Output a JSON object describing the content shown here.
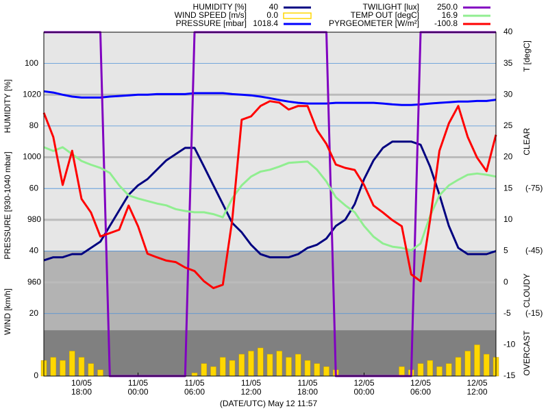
{
  "chart_data": {
    "type": "line",
    "x_label": "(DATE/UTC) May 12 11:57",
    "categories": [
      null,
      null,
      null,
      null,
      "10/05 18:00",
      null,
      null,
      null,
      null,
      null,
      "11/05 00:00",
      null,
      null,
      null,
      null,
      null,
      "11/05 06:00",
      null,
      null,
      null,
      null,
      null,
      "11/05 12:00",
      null,
      null,
      null,
      null,
      null,
      "11/05 18:00",
      null,
      null,
      null,
      null,
      null,
      "12/05 00:00",
      null,
      null,
      null,
      null,
      null,
      "12/05 06:00",
      null,
      null,
      null,
      null,
      null,
      "12/05 12:00",
      null,
      null
    ],
    "ylim": [
      0,
      110
    ],
    "yticks": [
      40,
      60,
      80,
      100
    ],
    "y_label": "HUMIDITY [%]",
    "y2lim": [
      -15,
      40
    ],
    "y2ticks": [
      -15,
      -10,
      -5,
      0,
      5,
      10,
      15,
      20,
      25,
      30,
      35,
      40
    ],
    "y2_label": "T [degC]",
    "y3lim": [
      930,
      1040
    ],
    "y3ticks": [
      960,
      980,
      1000,
      1020
    ],
    "y3_label": "PRESSURE [930-1040 mbar]",
    "y4lim": [
      0,
      110
    ],
    "y4ticks": [
      0,
      20
    ],
    "y4_label": "WIND [km/h]",
    "y5lim": [
      15,
      -150
    ],
    "y5ticks": [
      {
        "value": -75,
        "label": "(-75)"
      },
      {
        "value": -45,
        "label": "(-45)"
      },
      {
        "value": -15,
        "label": "(-15)"
      }
    ],
    "y6lim": [
      0,
      250
    ],
    "sky_bands": [
      {
        "label": "CLEAR",
        "from": -150,
        "to": -45,
        "color": "#e6e6e6"
      },
      {
        "label": "CLOUDY",
        "from": -45,
        "to": -7,
        "color": "#b3b3b3"
      },
      {
        "label": "OVERCAST",
        "from": -7,
        "to": 15,
        "color": "#808080"
      }
    ],
    "grid": true,
    "series": [
      {
        "name": "HUMIDITY [%]",
        "color": "#000080",
        "axis": "y",
        "current": 40,
        "values": [
          37,
          38,
          38,
          39,
          39,
          41,
          43,
          48,
          53,
          58,
          61,
          63,
          66,
          69,
          71,
          73,
          73,
          67,
          61,
          55,
          49,
          46,
          42,
          39,
          38,
          38,
          38,
          39,
          41,
          42,
          44,
          48,
          50,
          55,
          63,
          69,
          73,
          75,
          75,
          75,
          74,
          67,
          58,
          48,
          41,
          39,
          39,
          39,
          40
        ]
      },
      {
        "name": "WIND SPEED [m/s]",
        "color": "#ffd700",
        "axis": "y4",
        "type": "bar",
        "current": {
          "value": 0,
          "label": "0.0"
        },
        "values": [
          5,
          6,
          5,
          8,
          6,
          4,
          2,
          0,
          0,
          0,
          0,
          0,
          0,
          0,
          0,
          0,
          1,
          4,
          3,
          6,
          5,
          7,
          8,
          9,
          7,
          8,
          6,
          7,
          5,
          4,
          3,
          2,
          0,
          0,
          0,
          0,
          0,
          0,
          3,
          2,
          4,
          5,
          3,
          4,
          6,
          8,
          10,
          7,
          6
        ]
      },
      {
        "name": "PRESSURE [mbar]",
        "color": "#0000ff",
        "axis": "y3",
        "current": 1018.4,
        "values": [
          1021.1,
          1020.7,
          1020,
          1019.4,
          1019.1,
          1019.1,
          1019.1,
          1019.4,
          1019.6,
          1019.8,
          1020,
          1020,
          1020.2,
          1020.2,
          1020.2,
          1020.2,
          1020.5,
          1020.5,
          1020.5,
          1020.5,
          1020.2,
          1020,
          1019.8,
          1019.4,
          1018.9,
          1018.3,
          1017.8,
          1017.4,
          1017.2,
          1017.2,
          1017.2,
          1017.4,
          1017.4,
          1017.4,
          1017.4,
          1017.4,
          1017.2,
          1016.9,
          1016.7,
          1016.7,
          1016.9,
          1017.2,
          1017.4,
          1017.6,
          1017.8,
          1017.8,
          1018,
          1018,
          1018.4
        ]
      },
      {
        "name": "TWILIGHT [lux]",
        "color": "#8000c0",
        "axis": "y6",
        "current": {
          "value": 250,
          "label": "250.0"
        },
        "values": [
          250,
          250,
          250,
          250,
          250,
          250,
          250,
          0,
          0,
          0,
          0,
          0,
          0,
          0,
          0,
          0,
          250,
          250,
          250,
          250,
          250,
          250,
          250,
          250,
          250,
          250,
          250,
          250,
          250,
          250,
          250,
          0,
          0,
          0,
          0,
          0,
          0,
          0,
          0,
          0,
          250,
          250,
          250,
          250,
          250,
          250,
          250,
          250,
          250
        ]
      },
      {
        "name": "TEMP OUT [degC]",
        "color": "#90ee90",
        "axis": "y2",
        "current": 16.9,
        "values": [
          21.6,
          21,
          21.6,
          20.5,
          19.4,
          18.8,
          18.3,
          17.5,
          15.5,
          13.9,
          13.4,
          13,
          12.6,
          12.3,
          11.7,
          11.4,
          11.2,
          11.2,
          10.9,
          10.4,
          13.4,
          15.5,
          16.9,
          17.7,
          18,
          18.5,
          19.1,
          19.2,
          19.3,
          18,
          16.1,
          13.6,
          12.3,
          11.2,
          9,
          7.3,
          6.2,
          5.7,
          5.5,
          5.1,
          6.2,
          10.6,
          13.9,
          15.5,
          16.4,
          17.2,
          17.4,
          17.2,
          16.9
        ]
      },
      {
        "name": "PYRGEOMETER [W/m²]",
        "color": "#ff0000",
        "axis": "y5",
        "current": -100.8,
        "values": [
          -111.3,
          -99.7,
          -76.7,
          -93.1,
          -70,
          -63.5,
          -52,
          -53.6,
          -55.2,
          -66.8,
          -56.9,
          -43.7,
          -42,
          -40.4,
          -39.7,
          -37.1,
          -35.4,
          -30.5,
          -27.2,
          -28.8,
          -59.8,
          -108,
          -109.6,
          -114.6,
          -116.9,
          -116.2,
          -112.9,
          -114.6,
          -114.6,
          -103,
          -96.4,
          -86.5,
          -84.9,
          -83.9,
          -76.7,
          -66.8,
          -63.5,
          -59.8,
          -56.9,
          -33.8,
          -30.5,
          -59.8,
          -93.1,
          -106.3,
          -114.6,
          -99.7,
          -89.8,
          -83.3,
          -100.8
        ]
      }
    ]
  }
}
